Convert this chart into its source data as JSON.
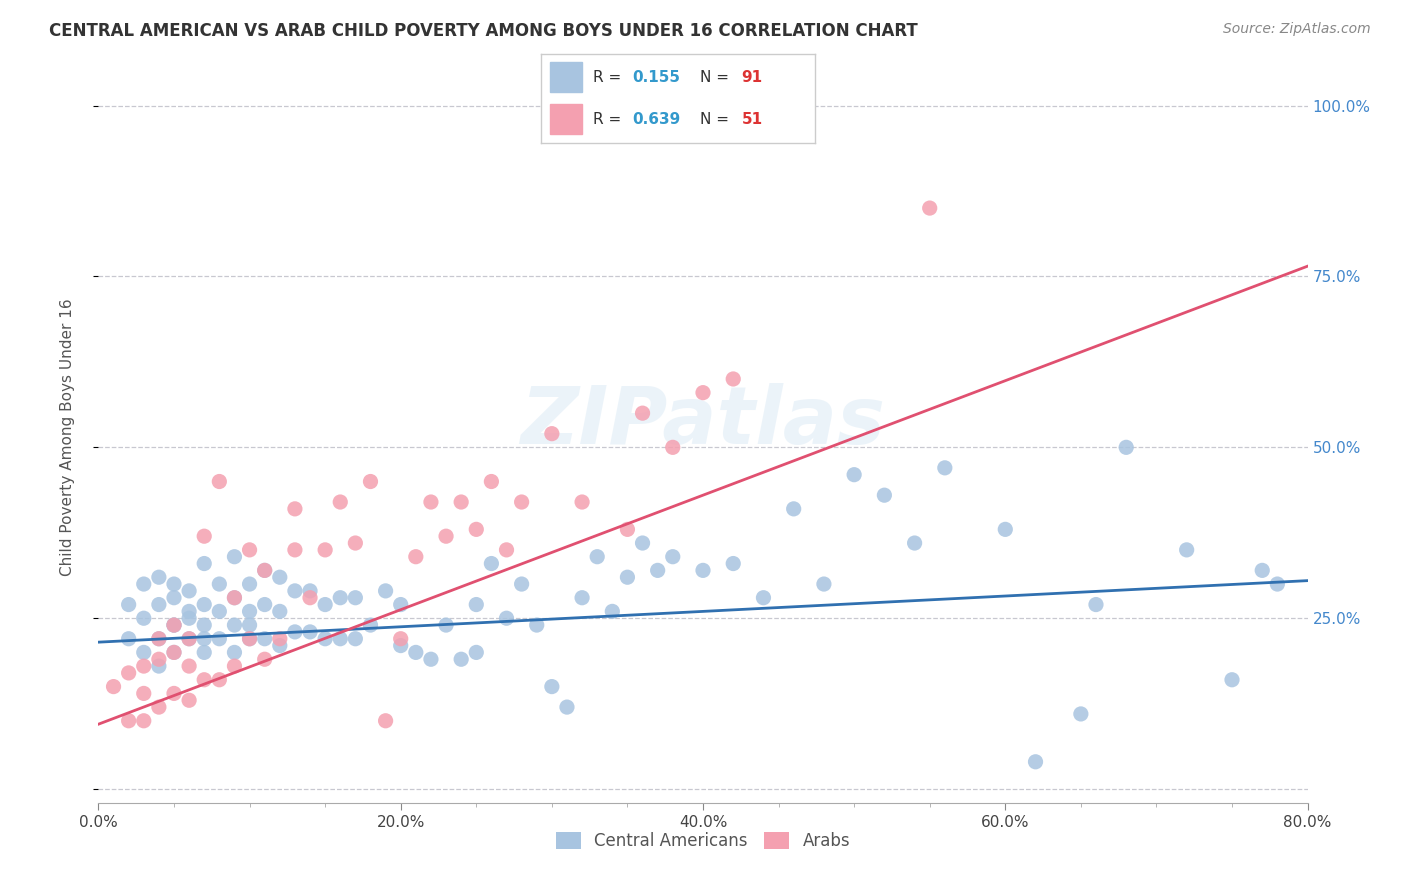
{
  "title": "CENTRAL AMERICAN VS ARAB CHILD POVERTY AMONG BOYS UNDER 16 CORRELATION CHART",
  "source": "Source: ZipAtlas.com",
  "ylabel": "Child Poverty Among Boys Under 16",
  "xlim": [
    0.0,
    0.8
  ],
  "ylim": [
    -0.02,
    1.05
  ],
  "ytick_positions": [
    0.0,
    0.25,
    0.5,
    0.75,
    1.0
  ],
  "ytick_labels": [
    "",
    "25.0%",
    "50.0%",
    "75.0%",
    "100.0%"
  ],
  "background_color": "#ffffff",
  "grid_color": "#c8c8d0",
  "watermark": "ZIPatlas",
  "ca_color": "#a8c4e0",
  "arab_color": "#f4a0b0",
  "ca_line_color": "#3070b0",
  "arab_line_color": "#e05070",
  "ca_R": 0.155,
  "ca_N": 91,
  "arab_R": 0.639,
  "arab_N": 51,
  "legend_label_ca": "Central Americans",
  "legend_label_arab": "Arabs",
  "ca_scatter_x": [
    0.02,
    0.02,
    0.03,
    0.03,
    0.03,
    0.04,
    0.04,
    0.04,
    0.04,
    0.05,
    0.05,
    0.05,
    0.05,
    0.05,
    0.06,
    0.06,
    0.06,
    0.06,
    0.07,
    0.07,
    0.07,
    0.07,
    0.07,
    0.08,
    0.08,
    0.08,
    0.09,
    0.09,
    0.09,
    0.09,
    0.1,
    0.1,
    0.1,
    0.1,
    0.11,
    0.11,
    0.11,
    0.12,
    0.12,
    0.12,
    0.13,
    0.13,
    0.14,
    0.14,
    0.15,
    0.15,
    0.16,
    0.16,
    0.17,
    0.17,
    0.18,
    0.19,
    0.2,
    0.2,
    0.21,
    0.22,
    0.23,
    0.24,
    0.25,
    0.25,
    0.26,
    0.27,
    0.28,
    0.29,
    0.3,
    0.31,
    0.32,
    0.33,
    0.34,
    0.35,
    0.36,
    0.37,
    0.38,
    0.4,
    0.42,
    0.44,
    0.46,
    0.48,
    0.5,
    0.52,
    0.54,
    0.56,
    0.6,
    0.62,
    0.65,
    0.66,
    0.68,
    0.72,
    0.75,
    0.77,
    0.78
  ],
  "ca_scatter_y": [
    0.22,
    0.27,
    0.2,
    0.25,
    0.3,
    0.18,
    0.22,
    0.27,
    0.31,
    0.2,
    0.24,
    0.28,
    0.3,
    0.24,
    0.22,
    0.26,
    0.29,
    0.25,
    0.2,
    0.24,
    0.27,
    0.33,
    0.22,
    0.22,
    0.26,
    0.3,
    0.2,
    0.24,
    0.28,
    0.34,
    0.22,
    0.26,
    0.3,
    0.24,
    0.22,
    0.27,
    0.32,
    0.21,
    0.26,
    0.31,
    0.23,
    0.29,
    0.23,
    0.29,
    0.22,
    0.27,
    0.22,
    0.28,
    0.22,
    0.28,
    0.24,
    0.29,
    0.21,
    0.27,
    0.2,
    0.19,
    0.24,
    0.19,
    0.2,
    0.27,
    0.33,
    0.25,
    0.3,
    0.24,
    0.15,
    0.12,
    0.28,
    0.34,
    0.26,
    0.31,
    0.36,
    0.32,
    0.34,
    0.32,
    0.33,
    0.28,
    0.41,
    0.3,
    0.46,
    0.43,
    0.36,
    0.47,
    0.38,
    0.04,
    0.11,
    0.27,
    0.5,
    0.35,
    0.16,
    0.32,
    0.3
  ],
  "arab_scatter_x": [
    0.01,
    0.02,
    0.02,
    0.03,
    0.03,
    0.03,
    0.04,
    0.04,
    0.04,
    0.05,
    0.05,
    0.05,
    0.06,
    0.06,
    0.06,
    0.07,
    0.07,
    0.08,
    0.08,
    0.09,
    0.09,
    0.1,
    0.1,
    0.11,
    0.11,
    0.12,
    0.13,
    0.13,
    0.14,
    0.15,
    0.16,
    0.17,
    0.18,
    0.19,
    0.2,
    0.21,
    0.22,
    0.23,
    0.24,
    0.25,
    0.26,
    0.27,
    0.28,
    0.3,
    0.32,
    0.35,
    0.36,
    0.38,
    0.4,
    0.42,
    0.55
  ],
  "arab_scatter_y": [
    0.15,
    0.1,
    0.17,
    0.1,
    0.14,
    0.18,
    0.12,
    0.19,
    0.22,
    0.14,
    0.2,
    0.24,
    0.13,
    0.18,
    0.22,
    0.16,
    0.37,
    0.16,
    0.45,
    0.18,
    0.28,
    0.22,
    0.35,
    0.19,
    0.32,
    0.22,
    0.35,
    0.41,
    0.28,
    0.35,
    0.42,
    0.36,
    0.45,
    0.1,
    0.22,
    0.34,
    0.42,
    0.37,
    0.42,
    0.38,
    0.45,
    0.35,
    0.42,
    0.52,
    0.42,
    0.38,
    0.55,
    0.5,
    0.58,
    0.6,
    0.85
  ],
  "ca_line_x": [
    0.0,
    0.8
  ],
  "ca_line_y": [
    0.215,
    0.305
  ],
  "arab_line_x": [
    0.0,
    0.8
  ],
  "arab_line_y": [
    0.095,
    0.765
  ]
}
